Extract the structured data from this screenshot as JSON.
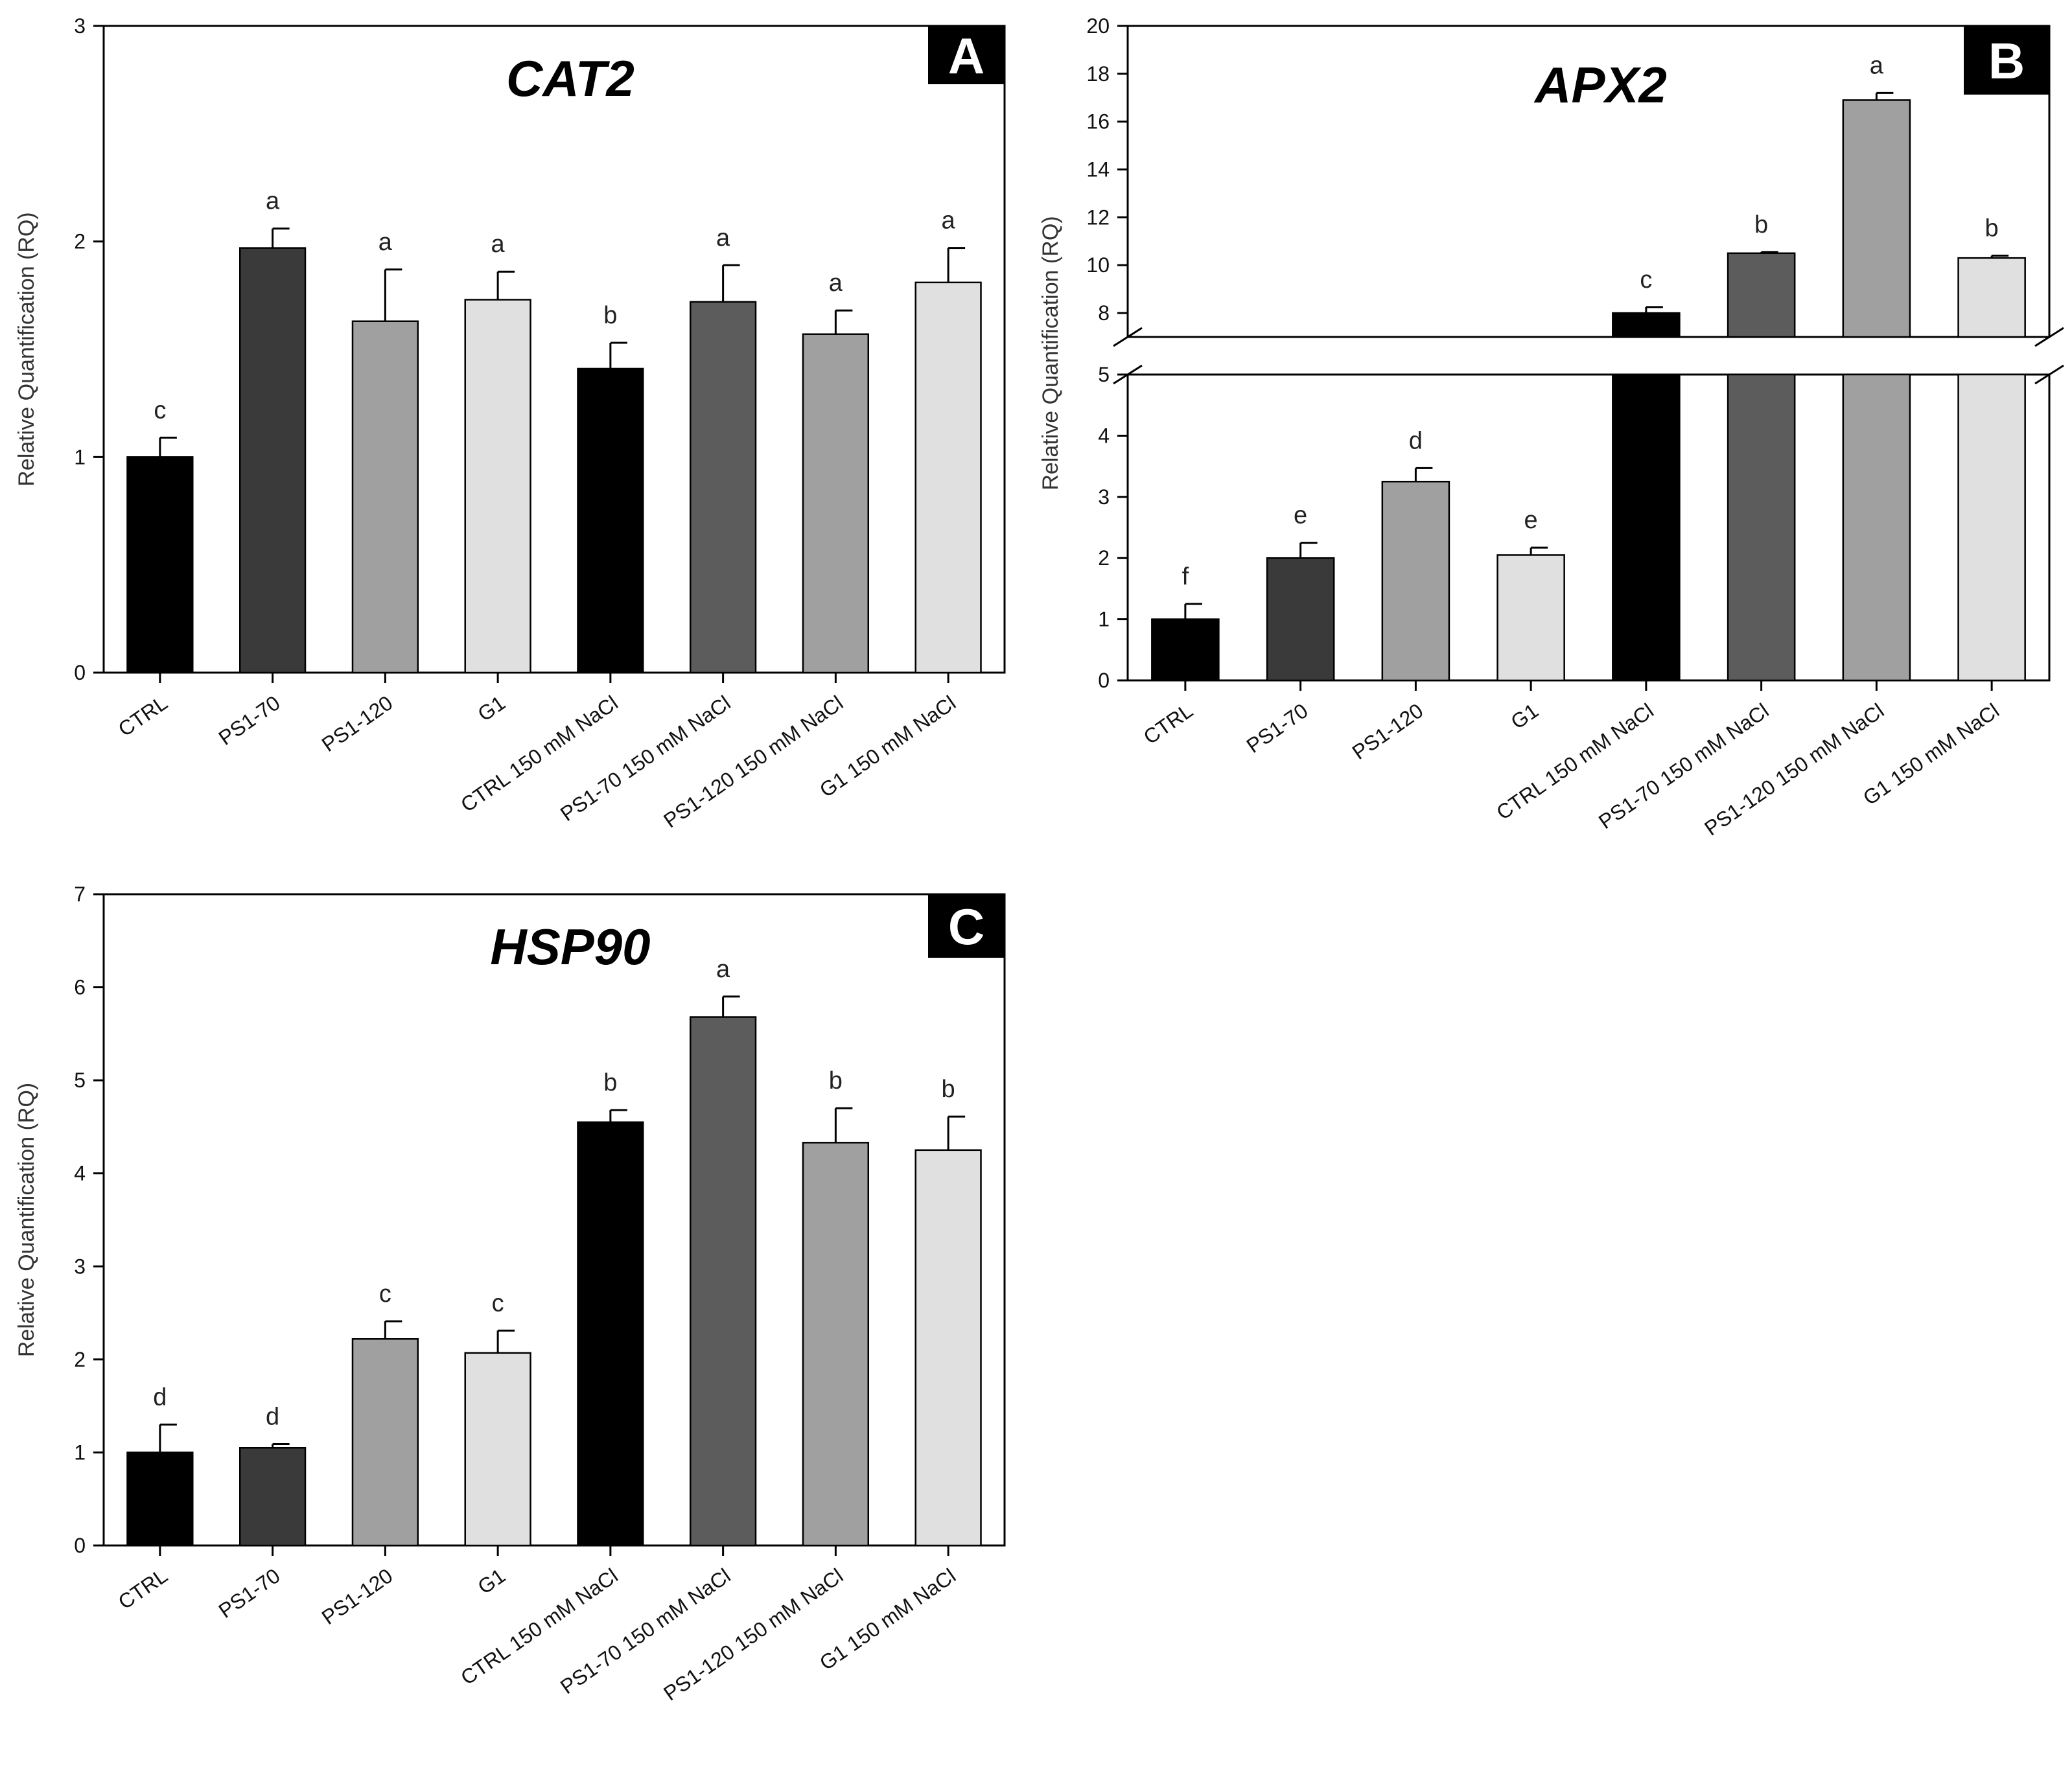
{
  "chart_data": [
    {
      "panel": "A",
      "type": "bar",
      "title": "CAT2",
      "ylabel": "Relative Quantification (RQ)",
      "xlabel": "",
      "ylim": [
        0,
        3
      ],
      "yticks": [
        0,
        1,
        2,
        3
      ],
      "categories": [
        "CTRL",
        "PS1-70",
        "PS1-120",
        "G1",
        "CTRL 150 mM NaCl",
        "PS1-70 150 mM NaCl",
        "PS1-120 150 mM NaCl",
        "G1 150 mM NaCl"
      ],
      "values": [
        1.0,
        1.97,
        1.63,
        1.73,
        1.41,
        1.72,
        1.57,
        1.81
      ],
      "errors": [
        0.09,
        0.09,
        0.24,
        0.13,
        0.12,
        0.17,
        0.11,
        0.16
      ],
      "letters": [
        "c",
        "a",
        "a",
        "a",
        "b",
        "a",
        "a",
        "a"
      ],
      "colors": [
        "#000000",
        "#3a3a3a",
        "#a0a0a0",
        "#e0e0e0",
        "#000000",
        "#5c5c5c",
        "#a0a0a0",
        "#e0e0e0"
      ]
    },
    {
      "panel": "B",
      "type": "bar",
      "title": "APX2",
      "ylabel": "Relative Quantification (RQ)",
      "xlabel": "",
      "ylim": [
        0,
        20
      ],
      "broken_axis": {
        "lower": [
          0,
          5
        ],
        "upper": [
          7,
          20
        ]
      },
      "yticks_lower": [
        0,
        1,
        2,
        3,
        4,
        5
      ],
      "yticks_upper": [
        8,
        10,
        12,
        14,
        16,
        18,
        20
      ],
      "categories": [
        "CTRL",
        "PS1-70",
        "PS1-120",
        "G1",
        "CTRL 150 mM NaCl",
        "PS1-70 150 mM NaCl",
        "PS1-120 150 mM NaCl",
        "G1 150 mM NaCl"
      ],
      "values": [
        1.0,
        2.0,
        3.25,
        2.05,
        8.0,
        10.5,
        16.9,
        10.3
      ],
      "errors": [
        0.25,
        0.25,
        0.22,
        0.12,
        0.25,
        0.05,
        0.3,
        0.1
      ],
      "letters": [
        "f",
        "e",
        "d",
        "e",
        "c",
        "b",
        "a",
        "b"
      ],
      "colors": [
        "#000000",
        "#3a3a3a",
        "#a0a0a0",
        "#e0e0e0",
        "#000000",
        "#5c5c5c",
        "#a0a0a0",
        "#e0e0e0"
      ]
    },
    {
      "panel": "C",
      "type": "bar",
      "title": "HSP90",
      "ylabel": "Relative Quantification (RQ)",
      "xlabel": "",
      "ylim": [
        0,
        7
      ],
      "yticks": [
        0,
        1,
        2,
        3,
        4,
        5,
        6,
        7
      ],
      "categories": [
        "CTRL",
        "PS1-70",
        "PS1-120",
        "G1",
        "CTRL 150 mM NaCl",
        "PS1-70 150 mM NaCl",
        "PS1-120 150 mM NaCl",
        "G1 150 mM NaCl"
      ],
      "values": [
        1.0,
        1.05,
        2.22,
        2.07,
        4.55,
        5.68,
        4.33,
        4.25
      ],
      "errors": [
        0.3,
        0.04,
        0.19,
        0.24,
        0.13,
        0.22,
        0.37,
        0.36
      ],
      "letters": [
        "d",
        "d",
        "c",
        "c",
        "b",
        "a",
        "b",
        "b"
      ],
      "colors": [
        "#000000",
        "#3a3a3a",
        "#a0a0a0",
        "#e0e0e0",
        "#000000",
        "#5c5c5c",
        "#a0a0a0",
        "#e0e0e0"
      ]
    }
  ]
}
